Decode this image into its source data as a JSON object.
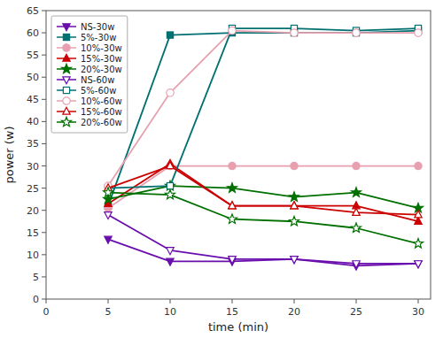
{
  "chart_data": {
    "type": "line",
    "xlabel": "time (min)",
    "ylabel": "power (w)",
    "x": [
      5,
      10,
      15,
      20,
      25,
      30
    ],
    "series": [
      {
        "name": "NS-30w",
        "color": "#6a0dad",
        "marker": "triangle-down",
        "values": [
          13.5,
          8.5,
          8.5,
          9.0,
          7.5,
          8.0
        ]
      },
      {
        "name": "5%-30w",
        "color": "#007070",
        "marker": "square",
        "values": [
          21.0,
          59.5,
          60.0,
          60.0,
          60.0,
          60.5
        ]
      },
      {
        "name": "10%-30w",
        "color": "#e8a0b0",
        "marker": "circle",
        "values": [
          20.5,
          30.0,
          30.0,
          30.0,
          30.0,
          30.0
        ]
      },
      {
        "name": "15%-30w",
        "color": "#cc0000",
        "marker": "triangle-up",
        "values": [
          21.5,
          30.5,
          21.0,
          21.0,
          21.0,
          17.5
        ]
      },
      {
        "name": "20%-30w",
        "color": "#007000",
        "marker": "star",
        "values": [
          22.5,
          25.5,
          25.0,
          23.0,
          24.0,
          20.5
        ]
      },
      {
        "name": "NS-60w",
        "color": "#6a0dad",
        "marker": "triangle-down-open",
        "values": [
          19.0,
          11.0,
          9.0,
          9.0,
          8.0,
          8.0
        ]
      },
      {
        "name": "5%-60w",
        "color": "#007070",
        "marker": "square-open",
        "values": [
          25.0,
          25.5,
          61.0,
          61.0,
          60.5,
          61.0
        ]
      },
      {
        "name": "10%-60w",
        "color": "#e8a0b0",
        "marker": "circle-open",
        "values": [
          25.5,
          46.5,
          60.5,
          60.0,
          60.0,
          60.0
        ]
      },
      {
        "name": "15%-60w",
        "color": "#cc0000",
        "marker": "triangle-up-open",
        "values": [
          25.0,
          30.0,
          21.0,
          21.0,
          19.5,
          19.0
        ]
      },
      {
        "name": "20%-60w",
        "color": "#007000",
        "marker": "star-open",
        "values": [
          24.0,
          23.5,
          18.0,
          17.5,
          16.0,
          12.5
        ]
      }
    ],
    "line_style": "solid",
    "xlim": [
      0,
      31
    ],
    "ylim": [
      0,
      65
    ],
    "xticks": [
      0,
      5,
      10,
      15,
      20,
      25,
      30
    ],
    "yticks": [
      0,
      5,
      10,
      15,
      20,
      25,
      30,
      35,
      40,
      45,
      50,
      55,
      60,
      65
    ],
    "grid": false,
    "legend": "upper left"
  }
}
